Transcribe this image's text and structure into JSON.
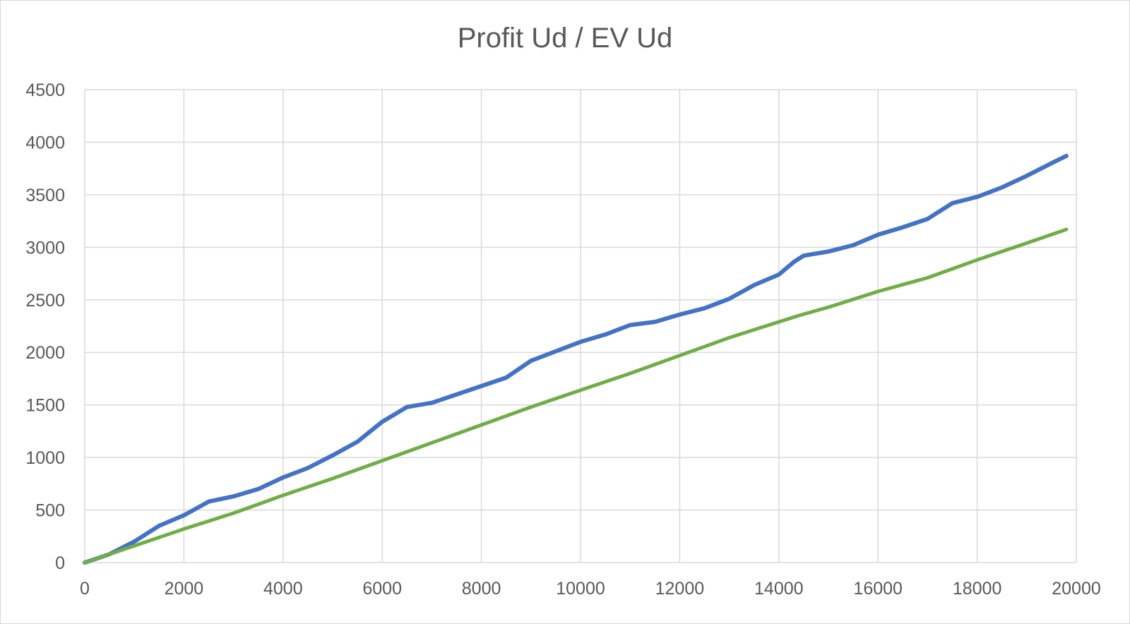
{
  "chart_data": {
    "type": "line",
    "title": "Profit Ud / EV Ud",
    "xlabel": "",
    "ylabel": "",
    "xlim": [
      0,
      20000
    ],
    "ylim": [
      0,
      4500
    ],
    "x_ticks": [
      0,
      2000,
      4000,
      6000,
      8000,
      10000,
      12000,
      14000,
      16000,
      18000,
      20000
    ],
    "y_ticks": [
      0,
      500,
      1000,
      1500,
      2000,
      2500,
      3000,
      3500,
      4000,
      4500
    ],
    "grid": true,
    "legend": "none",
    "series": [
      {
        "color": "#4472C4",
        "x": [
          0,
          500,
          1000,
          1500,
          2000,
          2500,
          3000,
          3500,
          4000,
          4500,
          5000,
          5500,
          6000,
          6500,
          7000,
          7500,
          8000,
          8500,
          9000,
          9500,
          10000,
          10500,
          11000,
          11500,
          12000,
          12500,
          13000,
          13500,
          14000,
          14300,
          14500,
          15000,
          15500,
          16000,
          16500,
          17000,
          17500,
          18000,
          18500,
          19000,
          19500,
          19800
        ],
        "values": [
          0,
          80,
          200,
          350,
          450,
          580,
          630,
          700,
          810,
          900,
          1020,
          1150,
          1340,
          1480,
          1520,
          1600,
          1680,
          1760,
          1920,
          2010,
          2100,
          2170,
          2260,
          2290,
          2360,
          2420,
          2510,
          2640,
          2740,
          2860,
          2920,
          2960,
          3020,
          3120,
          3190,
          3270,
          3420,
          3480,
          3570,
          3680,
          3800,
          3870
        ]
      },
      {
        "color": "#70AD47",
        "x": [
          0,
          1000,
          2000,
          3000,
          4000,
          5000,
          6000,
          7000,
          8000,
          9000,
          10000,
          11000,
          12000,
          13000,
          14000,
          14400,
          15000,
          16000,
          17000,
          18000,
          19000,
          19800
        ],
        "values": [
          0,
          160,
          320,
          470,
          640,
          800,
          970,
          1140,
          1310,
          1480,
          1640,
          1800,
          1970,
          2140,
          2290,
          2350,
          2430,
          2580,
          2710,
          2880,
          3040,
          3170
        ]
      }
    ]
  }
}
